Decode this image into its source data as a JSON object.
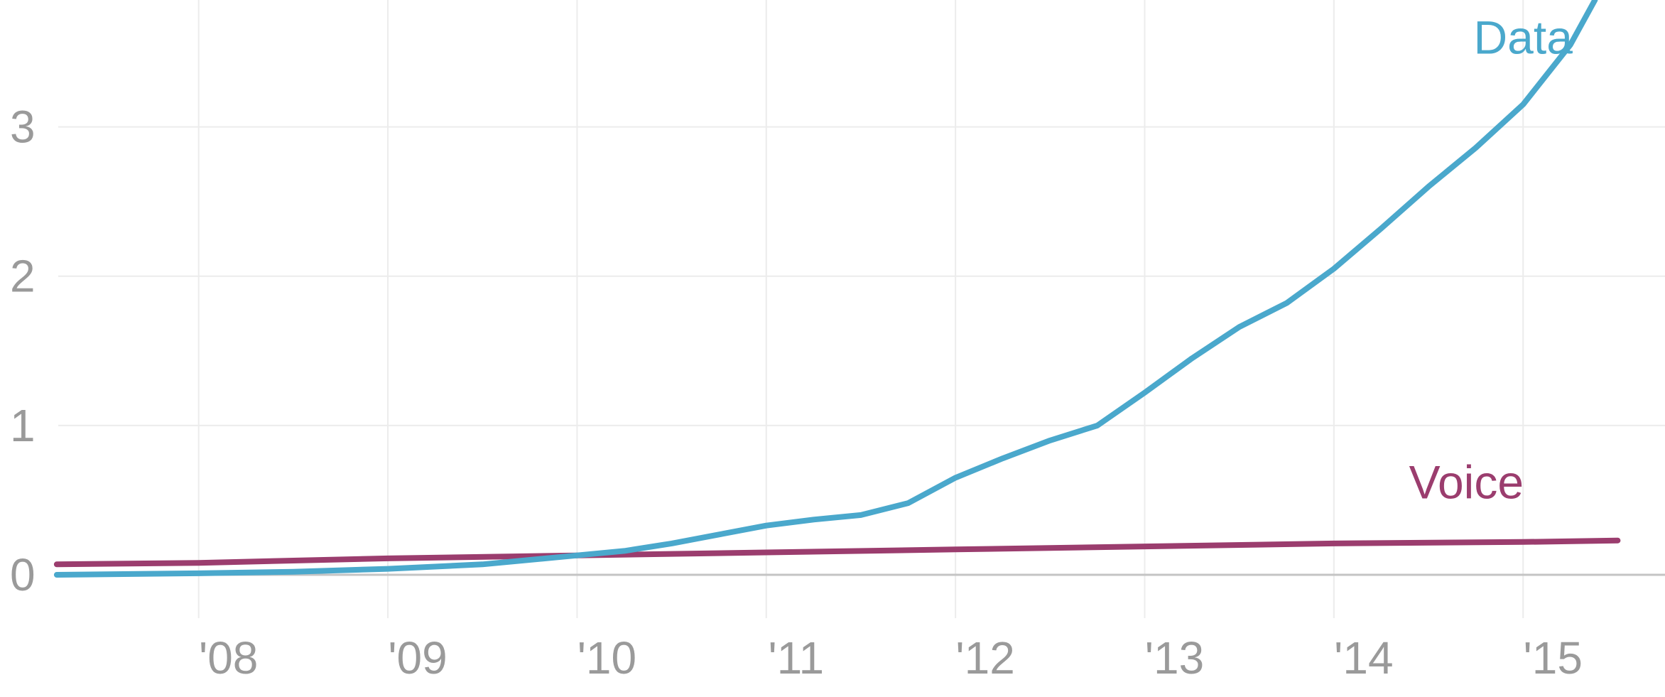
{
  "chart_data": {
    "type": "line",
    "title": "",
    "xlabel": "",
    "ylabel": "",
    "x_ticks": [
      {
        "value": 2008,
        "label": "'08"
      },
      {
        "value": 2009,
        "label": "'09"
      },
      {
        "value": 2010,
        "label": "'10"
      },
      {
        "value": 2011,
        "label": "'11"
      },
      {
        "value": 2012,
        "label": "'12"
      },
      {
        "value": 2013,
        "label": "'13"
      },
      {
        "value": 2014,
        "label": "'14"
      },
      {
        "value": 2015,
        "label": "'15"
      }
    ],
    "y_ticks": [
      {
        "value": 0,
        "label": "0"
      },
      {
        "value": 1,
        "label": "1"
      },
      {
        "value": 2,
        "label": "2"
      },
      {
        "value": 3,
        "label": "3"
      }
    ],
    "xlim": [
      2006.95,
      2015.75
    ],
    "ylim": [
      0,
      3.85
    ],
    "grid": true,
    "series": [
      {
        "name": "Data",
        "color": "#4aa8cc",
        "label_anchor": {
          "x": 2015.0,
          "y": 3.6
        },
        "points": [
          {
            "x": 2007.25,
            "y": 0.0
          },
          {
            "x": 2008.0,
            "y": 0.01
          },
          {
            "x": 2008.5,
            "y": 0.02
          },
          {
            "x": 2009.0,
            "y": 0.04
          },
          {
            "x": 2009.5,
            "y": 0.07
          },
          {
            "x": 2010.0,
            "y": 0.13
          },
          {
            "x": 2010.25,
            "y": 0.16
          },
          {
            "x": 2010.5,
            "y": 0.21
          },
          {
            "x": 2010.75,
            "y": 0.27
          },
          {
            "x": 2011.0,
            "y": 0.33
          },
          {
            "x": 2011.25,
            "y": 0.37
          },
          {
            "x": 2011.5,
            "y": 0.4
          },
          {
            "x": 2011.75,
            "y": 0.48
          },
          {
            "x": 2012.0,
            "y": 0.65
          },
          {
            "x": 2012.25,
            "y": 0.78
          },
          {
            "x": 2012.5,
            "y": 0.9
          },
          {
            "x": 2012.75,
            "y": 1.0
          },
          {
            "x": 2013.0,
            "y": 1.22
          },
          {
            "x": 2013.25,
            "y": 1.45
          },
          {
            "x": 2013.5,
            "y": 1.66
          },
          {
            "x": 2013.75,
            "y": 1.82
          },
          {
            "x": 2014.0,
            "y": 2.05
          },
          {
            "x": 2014.25,
            "y": 2.32
          },
          {
            "x": 2014.5,
            "y": 2.6
          },
          {
            "x": 2014.75,
            "y": 2.86
          },
          {
            "x": 2015.0,
            "y": 3.15
          },
          {
            "x": 2015.25,
            "y": 3.55
          },
          {
            "x": 2015.38,
            "y": 3.85
          }
        ]
      },
      {
        "name": "Voice",
        "color": "#9b3d6e",
        "label_anchor": {
          "x": 2014.7,
          "y": 0.62
        },
        "points": [
          {
            "x": 2007.25,
            "y": 0.07
          },
          {
            "x": 2008.0,
            "y": 0.08
          },
          {
            "x": 2009.0,
            "y": 0.11
          },
          {
            "x": 2010.0,
            "y": 0.13
          },
          {
            "x": 2011.0,
            "y": 0.15
          },
          {
            "x": 2012.0,
            "y": 0.17
          },
          {
            "x": 2013.0,
            "y": 0.19
          },
          {
            "x": 2014.0,
            "y": 0.21
          },
          {
            "x": 2015.0,
            "y": 0.22
          },
          {
            "x": 2015.5,
            "y": 0.23
          }
        ]
      }
    ]
  }
}
